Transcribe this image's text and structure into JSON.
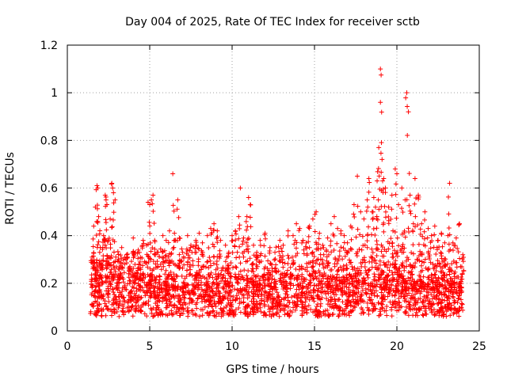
{
  "chart_data": {
    "type": "scatter",
    "title": "Day 004 of 2025, Rate Of TEC Index for receiver sctb",
    "xlabel": "GPS time / hours",
    "ylabel": "ROTI / TECUs",
    "xlim": [
      0,
      25
    ],
    "ylim": [
      0,
      1.2
    ],
    "xticks": [
      0,
      5,
      10,
      15,
      20,
      25
    ],
    "xtick_labels": [
      "0",
      "5",
      "10",
      "15",
      "20",
      "25"
    ],
    "yticks": [
      0,
      0.2,
      0.4,
      0.6,
      0.8,
      1,
      1.2
    ],
    "ytick_labels": [
      "0",
      "0.2",
      "0.4",
      "0.6",
      "0.8",
      "1",
      "1.2"
    ],
    "grid": true,
    "marker": "+",
    "marker_color": "#ff0000",
    "series": [
      {
        "name": "ROTI",
        "points": [
          [
            1.5,
            0.31
          ],
          [
            1.6,
            0.44
          ],
          [
            1.7,
            0.52
          ],
          [
            1.8,
            0.61
          ],
          [
            1.85,
            0.6
          ],
          [
            1.9,
            0.48
          ],
          [
            2.0,
            0.35
          ],
          [
            2.1,
            0.28
          ],
          [
            2.2,
            0.4
          ],
          [
            2.3,
            0.57
          ],
          [
            2.35,
            0.55
          ],
          [
            2.4,
            0.53
          ],
          [
            2.5,
            0.38
          ],
          [
            2.6,
            0.47
          ],
          [
            2.7,
            0.62
          ],
          [
            2.75,
            0.6
          ],
          [
            2.8,
            0.58
          ],
          [
            2.9,
            0.55
          ],
          [
            3.1,
            0.3
          ],
          [
            3.3,
            0.35
          ],
          [
            3.6,
            0.32
          ],
          [
            3.8,
            0.27
          ],
          [
            4.0,
            0.39
          ],
          [
            4.3,
            0.34
          ],
          [
            4.6,
            0.38
          ],
          [
            4.8,
            0.36
          ],
          [
            4.9,
            0.54
          ],
          [
            5.0,
            0.53
          ],
          [
            5.1,
            0.55
          ],
          [
            5.2,
            0.57
          ],
          [
            5.3,
            0.38
          ],
          [
            5.5,
            0.33
          ],
          [
            5.8,
            0.4
          ],
          [
            6.0,
            0.38
          ],
          [
            6.2,
            0.42
          ],
          [
            6.4,
            0.66
          ],
          [
            6.5,
            0.41
          ],
          [
            6.7,
            0.55
          ],
          [
            6.8,
            0.39
          ],
          [
            7.0,
            0.33
          ],
          [
            7.3,
            0.4
          ],
          [
            7.5,
            0.36
          ],
          [
            7.8,
            0.38
          ],
          [
            8.0,
            0.41
          ],
          [
            8.2,
            0.37
          ],
          [
            8.5,
            0.4
          ],
          [
            8.7,
            0.43
          ],
          [
            8.9,
            0.45
          ],
          [
            9.1,
            0.42
          ],
          [
            9.3,
            0.38
          ],
          [
            9.6,
            0.36
          ],
          [
            9.8,
            0.33
          ],
          [
            10.0,
            0.4
          ],
          [
            10.2,
            0.42
          ],
          [
            10.4,
            0.48
          ],
          [
            10.5,
            0.6
          ],
          [
            10.7,
            0.39
          ],
          [
            10.9,
            0.48
          ],
          [
            11.0,
            0.56
          ],
          [
            11.1,
            0.53
          ],
          [
            11.3,
            0.36
          ],
          [
            11.5,
            0.33
          ],
          [
            11.7,
            0.38
          ],
          [
            12.0,
            0.41
          ],
          [
            12.3,
            0.35
          ],
          [
            12.6,
            0.33
          ],
          [
            12.9,
            0.38
          ],
          [
            13.1,
            0.36
          ],
          [
            13.4,
            0.42
          ],
          [
            13.7,
            0.4
          ],
          [
            13.9,
            0.45
          ],
          [
            14.1,
            0.43
          ],
          [
            14.3,
            0.38
          ],
          [
            14.5,
            0.37
          ],
          [
            14.7,
            0.44
          ],
          [
            14.9,
            0.47
          ],
          [
            15.1,
            0.5
          ],
          [
            15.3,
            0.41
          ],
          [
            15.5,
            0.36
          ],
          [
            15.8,
            0.39
          ],
          [
            16.0,
            0.45
          ],
          [
            16.2,
            0.48
          ],
          [
            16.4,
            0.43
          ],
          [
            16.6,
            0.42
          ],
          [
            16.8,
            0.4
          ],
          [
            17.0,
            0.37
          ],
          [
            17.2,
            0.44
          ],
          [
            17.4,
            0.53
          ],
          [
            17.6,
            0.65
          ],
          [
            17.8,
            0.5
          ],
          [
            18.0,
            0.47
          ],
          [
            18.2,
            0.55
          ],
          [
            18.3,
            0.64
          ],
          [
            18.5,
            0.5
          ],
          [
            18.6,
            0.56
          ],
          [
            18.7,
            0.52
          ],
          [
            18.8,
            0.63
          ],
          [
            18.9,
            0.77
          ],
          [
            19.0,
            0.96
          ],
          [
            19.0,
            1.1
          ],
          [
            19.1,
            0.72
          ],
          [
            19.2,
            0.64
          ],
          [
            19.3,
            0.6
          ],
          [
            19.5,
            0.52
          ],
          [
            19.7,
            0.57
          ],
          [
            19.9,
            0.68
          ],
          [
            20.0,
            0.66
          ],
          [
            20.1,
            0.53
          ],
          [
            20.3,
            0.6
          ],
          [
            20.5,
            0.55
          ],
          [
            20.6,
            1.0
          ],
          [
            20.7,
            0.92
          ],
          [
            20.8,
            0.57
          ],
          [
            21.0,
            0.45
          ],
          [
            21.1,
            0.64
          ],
          [
            21.3,
            0.57
          ],
          [
            21.5,
            0.45
          ],
          [
            21.7,
            0.5
          ],
          [
            21.9,
            0.43
          ],
          [
            22.1,
            0.4
          ],
          [
            22.3,
            0.44
          ],
          [
            22.5,
            0.38
          ],
          [
            22.7,
            0.41
          ],
          [
            22.9,
            0.37
          ],
          [
            23.1,
            0.4
          ],
          [
            23.2,
            0.62
          ],
          [
            23.4,
            0.37
          ],
          [
            23.6,
            0.39
          ],
          [
            23.8,
            0.45
          ],
          [
            24.0,
            0.32
          ]
        ],
        "dense_band": {
          "x_range": [
            1.4,
            24.0
          ],
          "y_range": [
            0.02,
            0.3
          ],
          "note": "thousands of points form a dense band; regenerated deterministically by the script"
        }
      }
    ]
  }
}
